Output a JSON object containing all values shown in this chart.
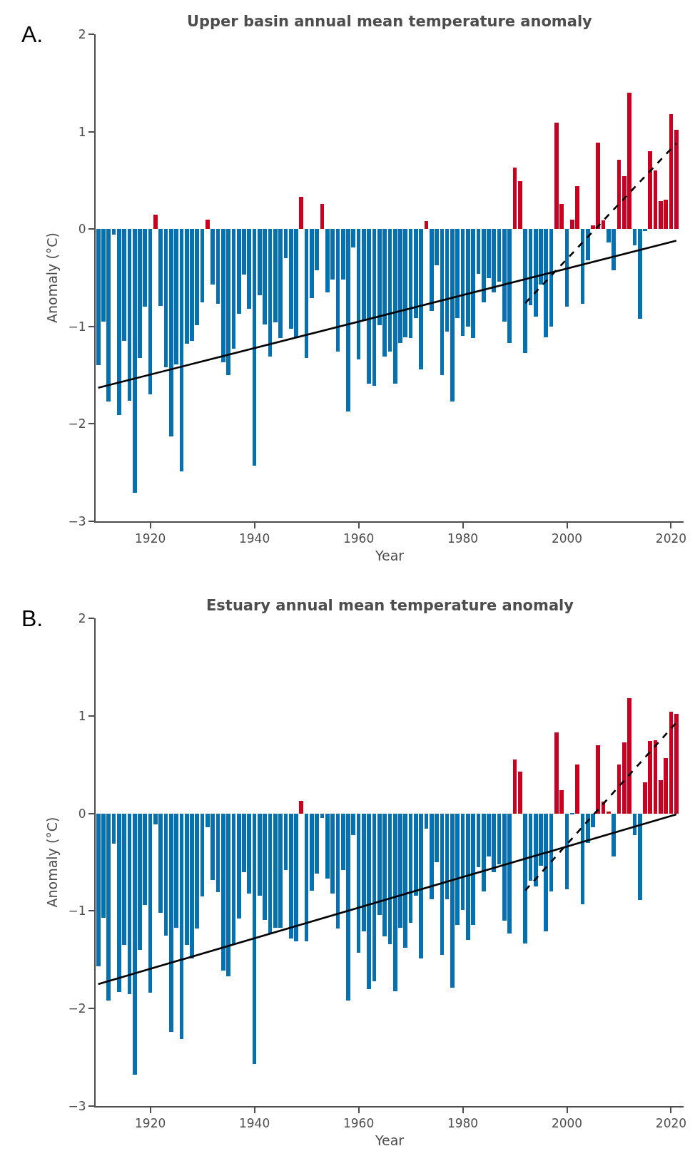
{
  "chart_data": [
    {
      "type": "bar",
      "title": "Upper basin annual mean temperature anomaly",
      "xlabel": "Year",
      "ylabel": "Anomaly (°C)",
      "annotations": [
        "A."
      ],
      "x": [
        1910,
        1911,
        1912,
        1913,
        1914,
        1915,
        1916,
        1917,
        1918,
        1919,
        1920,
        1921,
        1922,
        1923,
        1924,
        1925,
        1926,
        1927,
        1928,
        1929,
        1930,
        1931,
        1932,
        1933,
        1934,
        1935,
        1936,
        1937,
        1938,
        1939,
        1940,
        1941,
        1942,
        1943,
        1944,
        1945,
        1946,
        1947,
        1948,
        1949,
        1950,
        1951,
        1952,
        1953,
        1954,
        1955,
        1956,
        1957,
        1958,
        1959,
        1960,
        1961,
        1962,
        1963,
        1964,
        1965,
        1966,
        1967,
        1968,
        1969,
        1970,
        1971,
        1972,
        1973,
        1974,
        1975,
        1976,
        1977,
        1978,
        1979,
        1980,
        1981,
        1982,
        1983,
        1984,
        1985,
        1986,
        1987,
        1988,
        1989,
        1990,
        1991,
        1992,
        1993,
        1994,
        1995,
        1996,
        1997,
        1998,
        1999,
        2000,
        2001,
        2002,
        2003,
        2004,
        2005,
        2006,
        2007,
        2008,
        2009,
        2010,
        2011,
        2012,
        2013,
        2014,
        2015,
        2016,
        2017,
        2018,
        2019,
        2020,
        2021
      ],
      "series": [
        {
          "values": [
            -1.4,
            -0.95,
            -1.77,
            -0.06,
            -1.91,
            -1.15,
            -1.76,
            -2.71,
            -1.32,
            -0.8,
            -1.7,
            0.15,
            -0.79,
            -1.42,
            -2.13,
            -1.39,
            -2.49,
            -1.18,
            -1.15,
            -0.99,
            -0.75,
            0.1,
            -0.57,
            -0.77,
            -1.37,
            -1.5,
            -1.23,
            -0.87,
            -0.47,
            -0.82,
            -2.43,
            -0.68,
            -0.98,
            -1.31,
            -0.96,
            -1.12,
            -0.3,
            -1.02,
            -1.11,
            0.33,
            -1.32,
            -0.71,
            -0.42,
            0.26,
            -0.65,
            -0.52,
            -1.26,
            -0.52,
            -1.87,
            -0.19,
            -1.34,
            -0.94,
            -1.59,
            -1.61,
            -0.99,
            -1.31,
            -1.26,
            -1.59,
            -1.17,
            -1.11,
            -1.12,
            -0.91,
            -1.44,
            0.08,
            -0.84,
            -0.37,
            -1.5,
            -1.05,
            -1.77,
            -0.91,
            -1.1,
            -1.0,
            -1.12,
            -0.46,
            -0.75,
            -0.5,
            -0.65,
            -0.54,
            -0.95,
            -1.17,
            0.63,
            0.49,
            -1.27,
            -0.78,
            -0.9,
            -0.57,
            -1.11,
            -1.0,
            1.09,
            0.26,
            -0.8,
            0.1,
            0.44,
            -0.77,
            -0.32,
            0.04,
            0.89,
            0.09,
            -0.14,
            -0.42,
            0.71,
            0.54,
            1.4,
            -0.17,
            -0.92,
            -0.02,
            0.8,
            0.6,
            0.29,
            0.3,
            1.18,
            1.02
          ],
          "colors": [
            "#0571b0",
            "#0571b0",
            "#0571b0",
            "#0571b0",
            "#0571b0",
            "#0571b0",
            "#0571b0",
            "#0571b0",
            "#0571b0",
            "#0571b0",
            "#0571b0",
            "#ca0020",
            "#0571b0",
            "#0571b0",
            "#0571b0",
            "#0571b0",
            "#0571b0",
            "#0571b0",
            "#0571b0",
            "#0571b0",
            "#0571b0",
            "#ca0020",
            "#0571b0",
            "#0571b0",
            "#0571b0",
            "#0571b0",
            "#0571b0",
            "#0571b0",
            "#0571b0",
            "#0571b0",
            "#0571b0",
            "#0571b0",
            "#0571b0",
            "#0571b0",
            "#0571b0",
            "#0571b0",
            "#0571b0",
            "#0571b0",
            "#0571b0",
            "#ca0020",
            "#0571b0",
            "#0571b0",
            "#0571b0",
            "#ca0020",
            "#0571b0",
            "#0571b0",
            "#0571b0",
            "#0571b0",
            "#0571b0",
            "#0571b0",
            "#0571b0",
            "#0571b0",
            "#0571b0",
            "#0571b0",
            "#0571b0",
            "#0571b0",
            "#0571b0",
            "#0571b0",
            "#0571b0",
            "#0571b0",
            "#0571b0",
            "#0571b0",
            "#0571b0",
            "#ca0020",
            "#0571b0",
            "#0571b0",
            "#0571b0",
            "#0571b0",
            "#0571b0",
            "#0571b0",
            "#0571b0",
            "#0571b0",
            "#0571b0",
            "#0571b0",
            "#0571b0",
            "#0571b0",
            "#0571b0",
            "#0571b0",
            "#0571b0",
            "#0571b0",
            "#ca0020",
            "#ca0020",
            "#0571b0",
            "#0571b0",
            "#0571b0",
            "#0571b0",
            "#0571b0",
            "#0571b0",
            "#ca0020",
            "#ca0020",
            "#0571b0",
            "#ca0020",
            "#ca0020",
            "#0571b0",
            "#0571b0",
            "#ca0020",
            "#ca0020",
            "#ca0020",
            "#0571b0",
            "#0571b0",
            "#ca0020",
            "#ca0020",
            "#ca0020",
            "#0571b0",
            "#0571b0",
            "#0571b0",
            "#ca0020",
            "#ca0020",
            "#ca0020",
            "#ca0020",
            "#ca0020",
            "#ca0020"
          ]
        },
        {
          "type": "line",
          "color": "#000000",
          "line_style": "solid",
          "x": [
            1910,
            2021
          ],
          "values": [
            -1.63,
            -0.12
          ]
        },
        {
          "type": "line",
          "color": "#000000",
          "line_style": "dashed",
          "x": [
            1992,
            2021
          ],
          "values": [
            -0.76,
            0.88
          ]
        }
      ],
      "xlim": [
        1909.5,
        2022.4
      ],
      "xticks": [
        1920,
        1940,
        1960,
        1980,
        2000,
        2020
      ],
      "ylim": [
        -3,
        2
      ],
      "yticks": [
        {
          "value": -3,
          "label": "−3"
        },
        {
          "value": -2,
          "label": "−2"
        },
        {
          "value": -1,
          "label": "−1"
        },
        0,
        1,
        2
      ]
    },
    {
      "type": "bar",
      "title": "Estuary annual mean temperature anomaly",
      "xlabel": "Year",
      "ylabel": "Anomaly (°C)",
      "annotations": [
        "B."
      ],
      "x": [
        1910,
        1911,
        1912,
        1913,
        1914,
        1915,
        1916,
        1917,
        1918,
        1919,
        1920,
        1921,
        1922,
        1923,
        1924,
        1925,
        1926,
        1927,
        1928,
        1929,
        1930,
        1931,
        1932,
        1933,
        1934,
        1935,
        1936,
        1937,
        1938,
        1939,
        1940,
        1941,
        1942,
        1943,
        1944,
        1945,
        1946,
        1947,
        1948,
        1949,
        1950,
        1951,
        1952,
        1953,
        1954,
        1955,
        1956,
        1957,
        1958,
        1959,
        1960,
        1961,
        1962,
        1963,
        1964,
        1965,
        1966,
        1967,
        1968,
        1969,
        1970,
        1971,
        1972,
        1973,
        1974,
        1975,
        1976,
        1977,
        1978,
        1979,
        1980,
        1981,
        1982,
        1983,
        1984,
        1985,
        1986,
        1987,
        1988,
        1989,
        1990,
        1991,
        1992,
        1993,
        1994,
        1995,
        1996,
        1997,
        1998,
        1999,
        2000,
        2001,
        2002,
        2003,
        2004,
        2005,
        2006,
        2007,
        2008,
        2009,
        2010,
        2011,
        2012,
        2013,
        2014,
        2015,
        2016,
        2017,
        2018,
        2019,
        2020,
        2021
      ],
      "series": [
        {
          "values": [
            -1.57,
            -1.07,
            -1.92,
            -0.31,
            -1.83,
            -1.35,
            -1.85,
            -2.68,
            -1.4,
            -0.94,
            -1.84,
            -0.11,
            -1.02,
            -1.25,
            -2.24,
            -1.17,
            -2.31,
            -1.35,
            -1.49,
            -1.18,
            -0.85,
            -0.14,
            -0.68,
            -0.81,
            -1.61,
            -1.67,
            -1.34,
            -1.08,
            -0.6,
            -0.82,
            -2.57,
            -0.84,
            -1.09,
            -1.23,
            -1.17,
            -1.17,
            -0.58,
            -1.28,
            -1.31,
            0.13,
            -1.31,
            -0.79,
            -0.62,
            -0.05,
            -0.67,
            -0.82,
            -1.18,
            -0.58,
            -1.92,
            -0.22,
            -1.43,
            -1.21,
            -1.8,
            -1.72,
            -1.04,
            -1.26,
            -1.34,
            -1.82,
            -1.17,
            -1.38,
            -1.12,
            -0.84,
            -1.49,
            -0.16,
            -0.88,
            -0.5,
            -1.45,
            -0.88,
            -1.79,
            -1.14,
            -0.99,
            -1.3,
            -1.14,
            -0.55,
            -0.8,
            -0.44,
            -0.6,
            -0.52,
            -1.1,
            -1.23,
            0.55,
            0.43,
            -1.33,
            -0.69,
            -0.75,
            -0.54,
            -1.21,
            -0.8,
            0.83,
            0.24,
            -0.78,
            -0.01,
            0.5,
            -0.93,
            -0.3,
            -0.14,
            0.7,
            0.12,
            0.02,
            -0.44,
            0.5,
            0.73,
            1.18,
            -0.22,
            -0.89,
            0.32,
            0.74,
            0.75,
            0.34,
            0.57,
            1.04,
            1.02
          ],
          "colors": [
            "#0571b0",
            "#0571b0",
            "#0571b0",
            "#0571b0",
            "#0571b0",
            "#0571b0",
            "#0571b0",
            "#0571b0",
            "#0571b0",
            "#0571b0",
            "#0571b0",
            "#0571b0",
            "#0571b0",
            "#0571b0",
            "#0571b0",
            "#0571b0",
            "#0571b0",
            "#0571b0",
            "#0571b0",
            "#0571b0",
            "#0571b0",
            "#0571b0",
            "#0571b0",
            "#0571b0",
            "#0571b0",
            "#0571b0",
            "#0571b0",
            "#0571b0",
            "#0571b0",
            "#0571b0",
            "#0571b0",
            "#0571b0",
            "#0571b0",
            "#0571b0",
            "#0571b0",
            "#0571b0",
            "#0571b0",
            "#0571b0",
            "#0571b0",
            "#ca0020",
            "#0571b0",
            "#0571b0",
            "#0571b0",
            "#0571b0",
            "#0571b0",
            "#0571b0",
            "#0571b0",
            "#0571b0",
            "#0571b0",
            "#0571b0",
            "#0571b0",
            "#0571b0",
            "#0571b0",
            "#0571b0",
            "#0571b0",
            "#0571b0",
            "#0571b0",
            "#0571b0",
            "#0571b0",
            "#0571b0",
            "#0571b0",
            "#0571b0",
            "#0571b0",
            "#0571b0",
            "#0571b0",
            "#0571b0",
            "#0571b0",
            "#0571b0",
            "#0571b0",
            "#0571b0",
            "#0571b0",
            "#0571b0",
            "#0571b0",
            "#0571b0",
            "#0571b0",
            "#0571b0",
            "#0571b0",
            "#0571b0",
            "#0571b0",
            "#0571b0",
            "#ca0020",
            "#ca0020",
            "#0571b0",
            "#0571b0",
            "#0571b0",
            "#0571b0",
            "#0571b0",
            "#0571b0",
            "#ca0020",
            "#ca0020",
            "#0571b0",
            "#0571b0",
            "#ca0020",
            "#0571b0",
            "#0571b0",
            "#0571b0",
            "#ca0020",
            "#ca0020",
            "#ca0020",
            "#0571b0",
            "#ca0020",
            "#ca0020",
            "#ca0020",
            "#0571b0",
            "#0571b0",
            "#ca0020",
            "#ca0020",
            "#ca0020",
            "#ca0020",
            "#ca0020",
            "#ca0020",
            "#ca0020"
          ]
        },
        {
          "type": "line",
          "color": "#000000",
          "line_style": "solid",
          "x": [
            1910,
            2021
          ],
          "values": [
            -1.75,
            -0.01
          ]
        },
        {
          "type": "line",
          "color": "#000000",
          "line_style": "dashed",
          "x": [
            1992,
            2021
          ],
          "values": [
            -0.79,
            0.93
          ]
        }
      ],
      "xlim": [
        1909.5,
        2022.4
      ],
      "xticks": [
        1920,
        1940,
        1960,
        1980,
        2000,
        2020
      ],
      "ylim": [
        -3,
        2
      ],
      "yticks": [
        {
          "value": -3,
          "label": "−3"
        },
        {
          "value": -2,
          "label": "−2"
        },
        {
          "value": -1,
          "label": "−1"
        },
        0,
        1,
        2
      ]
    }
  ]
}
